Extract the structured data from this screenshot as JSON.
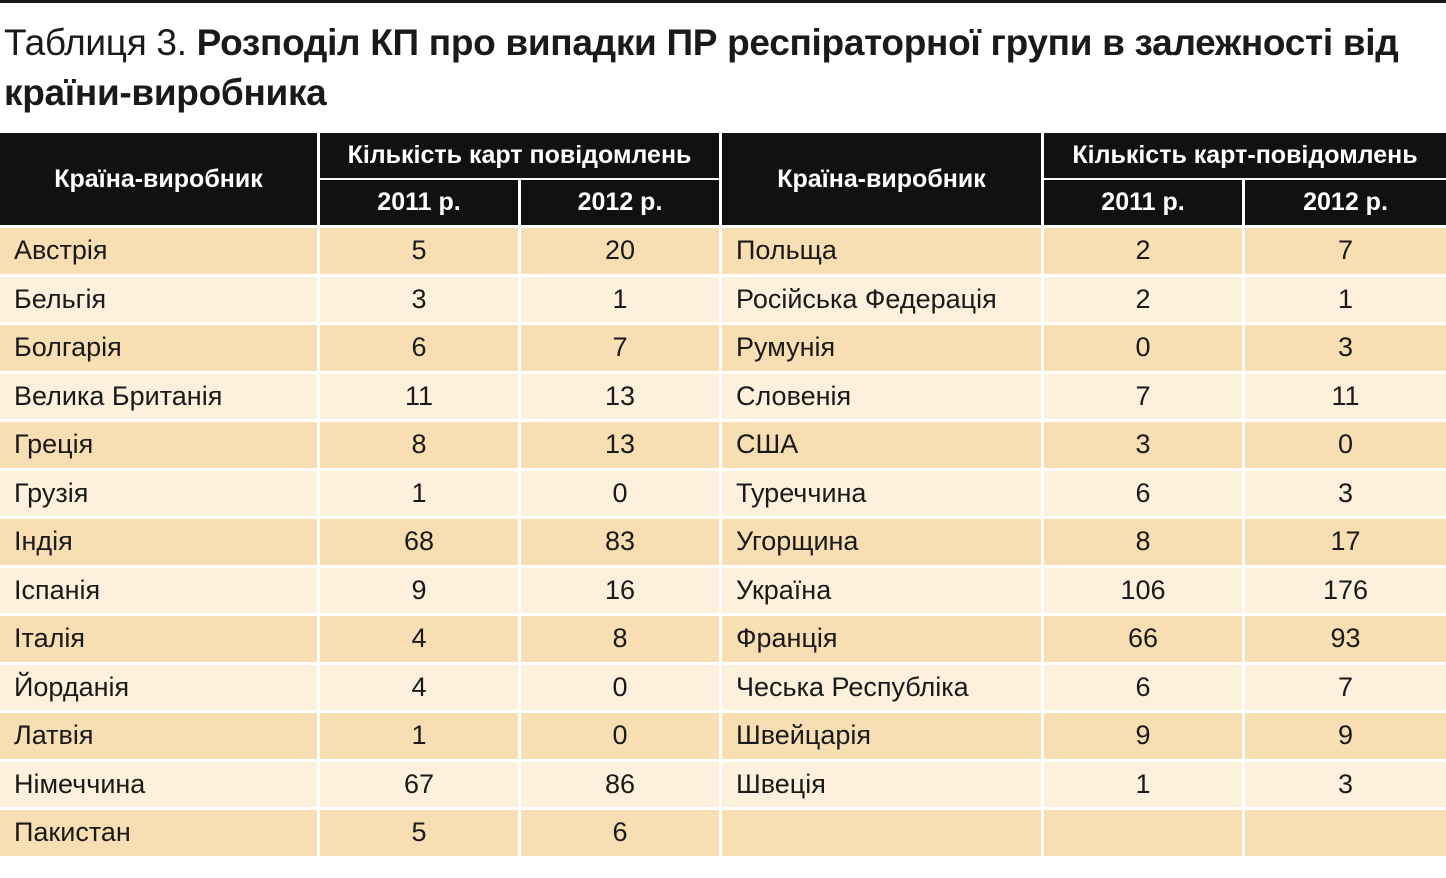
{
  "title": {
    "prefix": "Таблиця 3.",
    "main": "Розподіл КП про випадки ПР респіраторної групи в залежності від країни-виробника"
  },
  "header": {
    "country_label": "Країна-виробник",
    "group_label_left": "Кількість карт повідомлень",
    "group_label_right": "Кількість карт-повідомлень",
    "year_2011": "2011 р.",
    "year_2012": "2012 р."
  },
  "rows": [
    {
      "left": {
        "country": "Австрія",
        "y2011": "5",
        "y2012": "20"
      },
      "right": {
        "country": "Польща",
        "y2011": "2",
        "y2012": "7"
      }
    },
    {
      "left": {
        "country": "Бельгія",
        "y2011": "3",
        "y2012": "1"
      },
      "right": {
        "country": "Російська Федерація",
        "y2011": "2",
        "y2012": "1"
      }
    },
    {
      "left": {
        "country": "Болгарія",
        "y2011": "6",
        "y2012": "7"
      },
      "right": {
        "country": "Румунія",
        "y2011": "0",
        "y2012": "3"
      }
    },
    {
      "left": {
        "country": "Велика Британія",
        "y2011": "11",
        "y2012": "13"
      },
      "right": {
        "country": "Словенія",
        "y2011": "7",
        "y2012": "11"
      }
    },
    {
      "left": {
        "country": "Греція",
        "y2011": "8",
        "y2012": "13"
      },
      "right": {
        "country": "США",
        "y2011": "3",
        "y2012": "0"
      }
    },
    {
      "left": {
        "country": "Грузія",
        "y2011": "1",
        "y2012": "0"
      },
      "right": {
        "country": "Туреччина",
        "y2011": "6",
        "y2012": "3"
      }
    },
    {
      "left": {
        "country": "Індія",
        "y2011": "68",
        "y2012": "83"
      },
      "right": {
        "country": "Угорщина",
        "y2011": "8",
        "y2012": "17"
      }
    },
    {
      "left": {
        "country": "Іспанія",
        "y2011": "9",
        "y2012": "16"
      },
      "right": {
        "country": "Україна",
        "y2011": "106",
        "y2012": "176"
      }
    },
    {
      "left": {
        "country": "Італія",
        "y2011": "4",
        "y2012": "8"
      },
      "right": {
        "country": "Франція",
        "y2011": "66",
        "y2012": "93"
      }
    },
    {
      "left": {
        "country": "Йорданія",
        "y2011": "4",
        "y2012": "0"
      },
      "right": {
        "country": "Чеська Республіка",
        "y2011": "6",
        "y2012": "7"
      }
    },
    {
      "left": {
        "country": "Латвія",
        "y2011": "1",
        "y2012": "0"
      },
      "right": {
        "country": "Швейцарія",
        "y2011": "9",
        "y2012": "9"
      }
    },
    {
      "left": {
        "country": "Німеччина",
        "y2011": "67",
        "y2012": "86"
      },
      "right": {
        "country": "Швеція",
        "y2011": "1",
        "y2012": "3"
      }
    },
    {
      "left": {
        "country": "Пакистан",
        "y2011": "5",
        "y2012": "6"
      },
      "right": {
        "country": "",
        "y2011": "",
        "y2012": ""
      }
    }
  ]
}
